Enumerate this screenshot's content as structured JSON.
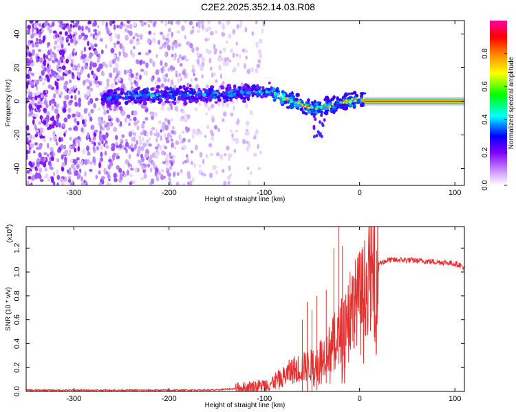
{
  "title": "C2E2.2025.352.14.03.R08",
  "chart_data": [
    {
      "type": "heatmap",
      "xlabel": "Height of straight line (km)",
      "ylabel": "Frequency (Hz)",
      "xlim": [
        -350,
        110
      ],
      "ylim": [
        -50,
        48
      ],
      "xticks": [
        -300,
        -200,
        -100,
        0,
        100
      ],
      "yticks": [
        -40,
        -20,
        0,
        20,
        40
      ],
      "colorbar": {
        "label": "Normalized spectral amplitude",
        "range": [
          0,
          1
        ],
        "ticks": [
          0.0,
          0.2,
          0.4,
          0.6,
          0.8
        ]
      },
      "ridge": {
        "x": [
          -270,
          -240,
          -200,
          -160,
          -130,
          -110,
          -95,
          -80,
          -65,
          -55,
          -45,
          -35,
          -25,
          -15,
          -5,
          5,
          40,
          80,
          110
        ],
        "y": [
          2,
          3,
          4,
          4,
          5,
          6,
          6,
          2,
          -1,
          -3,
          -4,
          -3,
          -2,
          0,
          1,
          1,
          0,
          0,
          0
        ]
      },
      "noise_extent_x": [
        -350,
        -130
      ]
    },
    {
      "type": "line",
      "xlabel": "Height of straight line (km)",
      "ylabel": "SNR (10 * v/v)",
      "y_multiplier": "(x10",
      "y_multiplier_exp": "4",
      "y_multiplier_close": ")",
      "xlim": [
        -350,
        110
      ],
      "ylim": [
        0,
        1.38
      ],
      "xticks": [
        -300,
        -200,
        -100,
        0,
        100
      ],
      "yticks": [
        0.0,
        0.2,
        0.4,
        0.6,
        0.8,
        1.0,
        1.2
      ],
      "color": "#e53030",
      "series": [
        {
          "name": "SNR",
          "x": [
            -350,
            -300,
            -250,
            -200,
            -150,
            -120,
            -100,
            -90,
            -80,
            -70,
            -60,
            -50,
            -45,
            -40,
            -35,
            -30,
            -25,
            -20,
            -15,
            -10,
            -5,
            0,
            5,
            10,
            15,
            20,
            30,
            50,
            70,
            90,
            100,
            105,
            110
          ],
          "y": [
            0.01,
            0.01,
            0.01,
            0.01,
            0.012,
            0.03,
            0.05,
            0.08,
            0.12,
            0.18,
            0.2,
            0.22,
            0.26,
            0.3,
            0.32,
            0.38,
            0.45,
            0.5,
            0.6,
            0.68,
            0.74,
            0.8,
            0.86,
            0.95,
            1.02,
            1.07,
            1.1,
            1.1,
            1.09,
            1.08,
            1.07,
            1.06,
            1.03
          ]
        }
      ],
      "spikes": {
        "x": [
          -60,
          -55,
          -50,
          -45,
          -35,
          -27,
          -22,
          -18,
          -10,
          -5,
          3,
          12,
          18
        ],
        "y": [
          0.6,
          0.75,
          0.68,
          0.8,
          0.85,
          1.2,
          1.38,
          1.22,
          1.0,
          0.95,
          1.05,
          1.12,
          1.18
        ]
      }
    }
  ]
}
